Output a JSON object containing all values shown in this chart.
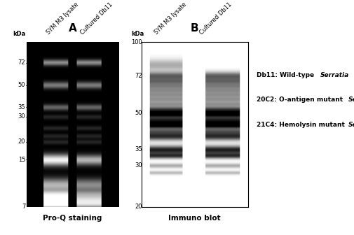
{
  "title_A": "A",
  "title_B": "B",
  "label_proq": "Pro-Q staining",
  "label_immuno": "Immuno blot",
  "kda_label": "kDa",
  "lane_labels_A": [
    "SYM M3 lysate",
    "Cultured Db11"
  ],
  "lane_labels_B": [
    "SYM M3 lysate",
    "Cultured Db11"
  ],
  "kda_ticks_A": [
    72,
    50,
    35,
    30,
    20,
    15,
    7
  ],
  "kda_ticks_B": [
    100,
    72,
    50,
    35,
    30,
    20
  ],
  "legend_prefixes": [
    "Db11: Wild-type ",
    "20C2: O-antigen mutant ",
    "21C4: Hemolysin mutant "
  ],
  "legend_italic": [
    "Serratia",
    "Serratia",
    "Serratia"
  ],
  "bg_color": "#ffffff",
  "kda_A_min": 7,
  "kda_A_max": 100,
  "kda_B_min": 20,
  "kda_B_max": 100
}
